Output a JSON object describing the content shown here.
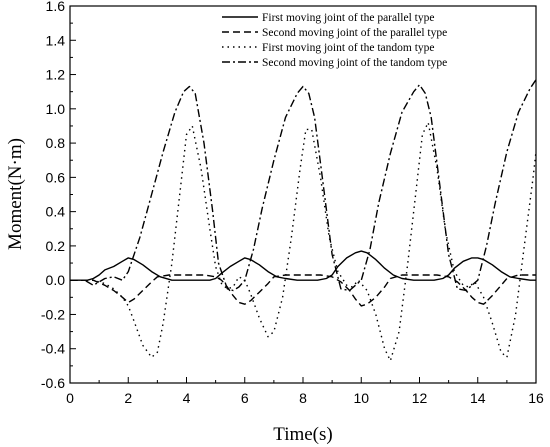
{
  "chart_data": {
    "type": "line",
    "xlabel": "Time(s)",
    "ylabel": "Moment(N·m)",
    "xlim": [
      0,
      16
    ],
    "ylim": [
      -0.6,
      1.6
    ],
    "xticks": [
      0,
      2,
      4,
      6,
      8,
      10,
      12,
      14,
      16
    ],
    "yticks": [
      -0.6,
      -0.4,
      -0.2,
      0.0,
      0.2,
      0.4,
      0.6,
      0.8,
      1.0,
      1.2,
      1.4,
      1.6
    ],
    "ytick_labels": [
      "-0.6",
      "-0.4",
      "-0.2",
      "0.0",
      "0.2",
      "0.4",
      "0.6",
      "0.8",
      "1.0",
      "1.2",
      "1.4",
      "1.6"
    ],
    "grid": false,
    "legend_position": "top-right",
    "series": [
      {
        "name": "First moving joint of the parallel type",
        "dash": "solid",
        "x": [
          0,
          0.6,
          0.8,
          1.0,
          1.2,
          1.5,
          1.8,
          2.0,
          2.2,
          2.5,
          2.8,
          3.1,
          3.5,
          4.0,
          4.5,
          4.8,
          5.0,
          5.2,
          5.5,
          5.8,
          6.0,
          6.2,
          6.5,
          6.8,
          7.1,
          7.4,
          7.8,
          8.0,
          8.5,
          8.8,
          9.0,
          9.2,
          9.5,
          9.8,
          10.0,
          10.2,
          10.5,
          10.8,
          11.1,
          11.4,
          11.8,
          12.0,
          12.5,
          12.8,
          13.0,
          13.2,
          13.5,
          13.8,
          14.0,
          14.2,
          14.5,
          14.8,
          15.1,
          15.4,
          15.8,
          16.0
        ],
        "y": [
          0,
          0,
          0.01,
          0.03,
          0.06,
          0.08,
          0.11,
          0.13,
          0.12,
          0.09,
          0.05,
          0.02,
          0.0,
          0.0,
          0.0,
          0.0,
          0.01,
          0.04,
          0.08,
          0.11,
          0.13,
          0.12,
          0.09,
          0.05,
          0.02,
          0.01,
          0.0,
          0.0,
          0.0,
          0.01,
          0.03,
          0.08,
          0.13,
          0.16,
          0.17,
          0.16,
          0.12,
          0.07,
          0.03,
          0.01,
          0.0,
          0.0,
          0.0,
          0.01,
          0.03,
          0.07,
          0.11,
          0.13,
          0.13,
          0.12,
          0.09,
          0.05,
          0.02,
          0.01,
          0.0,
          0.0
        ]
      },
      {
        "name": "Second moving joint of the parallel type",
        "dash": "dashed",
        "x": [
          0,
          0.8,
          1.2,
          1.5,
          1.8,
          2.0,
          2.2,
          2.5,
          2.8,
          3.0,
          3.4,
          3.8,
          4.2,
          4.6,
          5.0,
          5.2,
          5.4,
          5.6,
          5.8,
          6.0,
          6.2,
          6.5,
          6.8,
          7.0,
          7.4,
          7.8,
          8.2,
          8.6,
          9.0,
          9.3,
          9.6,
          9.8,
          10.0,
          10.2,
          10.5,
          10.8,
          11.0,
          11.4,
          11.8,
          12.2,
          12.6,
          13.0,
          13.3,
          13.6,
          13.8,
          14.0,
          14.2,
          14.5,
          14.8,
          15.0,
          15.4,
          15.8,
          16.0
        ],
        "y": [
          0,
          0,
          -0.03,
          -0.06,
          -0.1,
          -0.13,
          -0.11,
          -0.06,
          -0.01,
          0.02,
          0.03,
          0.03,
          0.03,
          0.03,
          0.02,
          0.0,
          -0.04,
          -0.09,
          -0.13,
          -0.14,
          -0.12,
          -0.07,
          -0.02,
          0.02,
          0.03,
          0.03,
          0.03,
          0.03,
          0.02,
          -0.01,
          -0.06,
          -0.11,
          -0.15,
          -0.14,
          -0.1,
          -0.04,
          0.01,
          0.03,
          0.03,
          0.03,
          0.03,
          0.02,
          -0.01,
          -0.06,
          -0.1,
          -0.13,
          -0.14,
          -0.09,
          -0.03,
          0.01,
          0.03,
          0.03,
          0.03
        ]
      },
      {
        "name": "First moving joint of the tandom type",
        "dash": "dotted",
        "x": [
          0,
          0.8,
          1.2,
          1.5,
          1.8,
          2.0,
          2.2,
          2.5,
          2.8,
          3.0,
          3.2,
          3.5,
          3.8,
          4.0,
          4.2,
          4.5,
          4.8,
          5.0,
          5.2,
          5.4,
          5.6,
          5.8,
          6.0,
          6.2,
          6.5,
          6.8,
          7.0,
          7.3,
          7.6,
          7.9,
          8.1,
          8.3,
          8.6,
          8.9,
          9.2,
          9.5,
          9.7,
          9.9,
          10.2,
          10.5,
          10.8,
          11.0,
          11.3,
          11.6,
          11.9,
          12.1,
          12.3,
          12.6,
          12.9,
          13.2,
          13.5,
          13.7,
          13.9,
          14.2,
          14.5,
          14.8,
          15.0,
          15.3,
          15.6,
          15.9,
          16.0
        ],
        "y": [
          0,
          0,
          -0.02,
          -0.05,
          -0.1,
          -0.15,
          -0.24,
          -0.38,
          -0.45,
          -0.42,
          -0.25,
          0.1,
          0.55,
          0.85,
          0.9,
          0.65,
          0.3,
          0.08,
          -0.02,
          -0.05,
          -0.04,
          0.02,
          0.0,
          -0.08,
          -0.22,
          -0.33,
          -0.3,
          -0.1,
          0.25,
          0.65,
          0.88,
          0.88,
          0.6,
          0.25,
          0.05,
          -0.03,
          -0.04,
          0.0,
          -0.06,
          -0.2,
          -0.4,
          -0.47,
          -0.3,
          0.1,
          0.55,
          0.85,
          0.92,
          0.65,
          0.28,
          0.05,
          -0.03,
          -0.04,
          -0.01,
          -0.1,
          -0.25,
          -0.42,
          -0.45,
          -0.2,
          0.2,
          0.6,
          0.75
        ]
      },
      {
        "name": "Second moving joint of the tandom type",
        "dash": "dashdot",
        "x": [
          0,
          0.5,
          0.8,
          1.0,
          1.2,
          1.5,
          1.8,
          2.0,
          2.4,
          2.8,
          3.2,
          3.6,
          3.9,
          4.1,
          4.3,
          4.6,
          4.9,
          5.1,
          5.4,
          5.6,
          5.8,
          6.0,
          6.3,
          6.6,
          7.0,
          7.4,
          7.8,
          8.0,
          8.2,
          8.4,
          8.7,
          9.0,
          9.3,
          9.6,
          9.8,
          10.0,
          10.3,
          10.6,
          11.0,
          11.4,
          11.8,
          12.0,
          12.2,
          12.4,
          12.7,
          13.0,
          13.3,
          13.6,
          13.8,
          14.0,
          14.3,
          14.6,
          15.0,
          15.4,
          15.8,
          16.0
        ],
        "y": [
          0,
          0,
          -0.03,
          -0.01,
          0.01,
          0.02,
          0.0,
          0.05,
          0.25,
          0.5,
          0.75,
          0.98,
          1.1,
          1.13,
          1.09,
          0.8,
          0.4,
          0.1,
          -0.05,
          -0.06,
          -0.04,
          0.0,
          0.18,
          0.42,
          0.7,
          0.95,
          1.09,
          1.13,
          1.09,
          0.95,
          0.55,
          0.15,
          -0.05,
          -0.06,
          -0.03,
          0.0,
          0.18,
          0.45,
          0.74,
          0.98,
          1.1,
          1.14,
          1.09,
          0.95,
          0.55,
          0.15,
          -0.05,
          -0.06,
          -0.03,
          0.0,
          0.2,
          0.45,
          0.75,
          0.98,
          1.12,
          1.17
        ]
      }
    ]
  }
}
